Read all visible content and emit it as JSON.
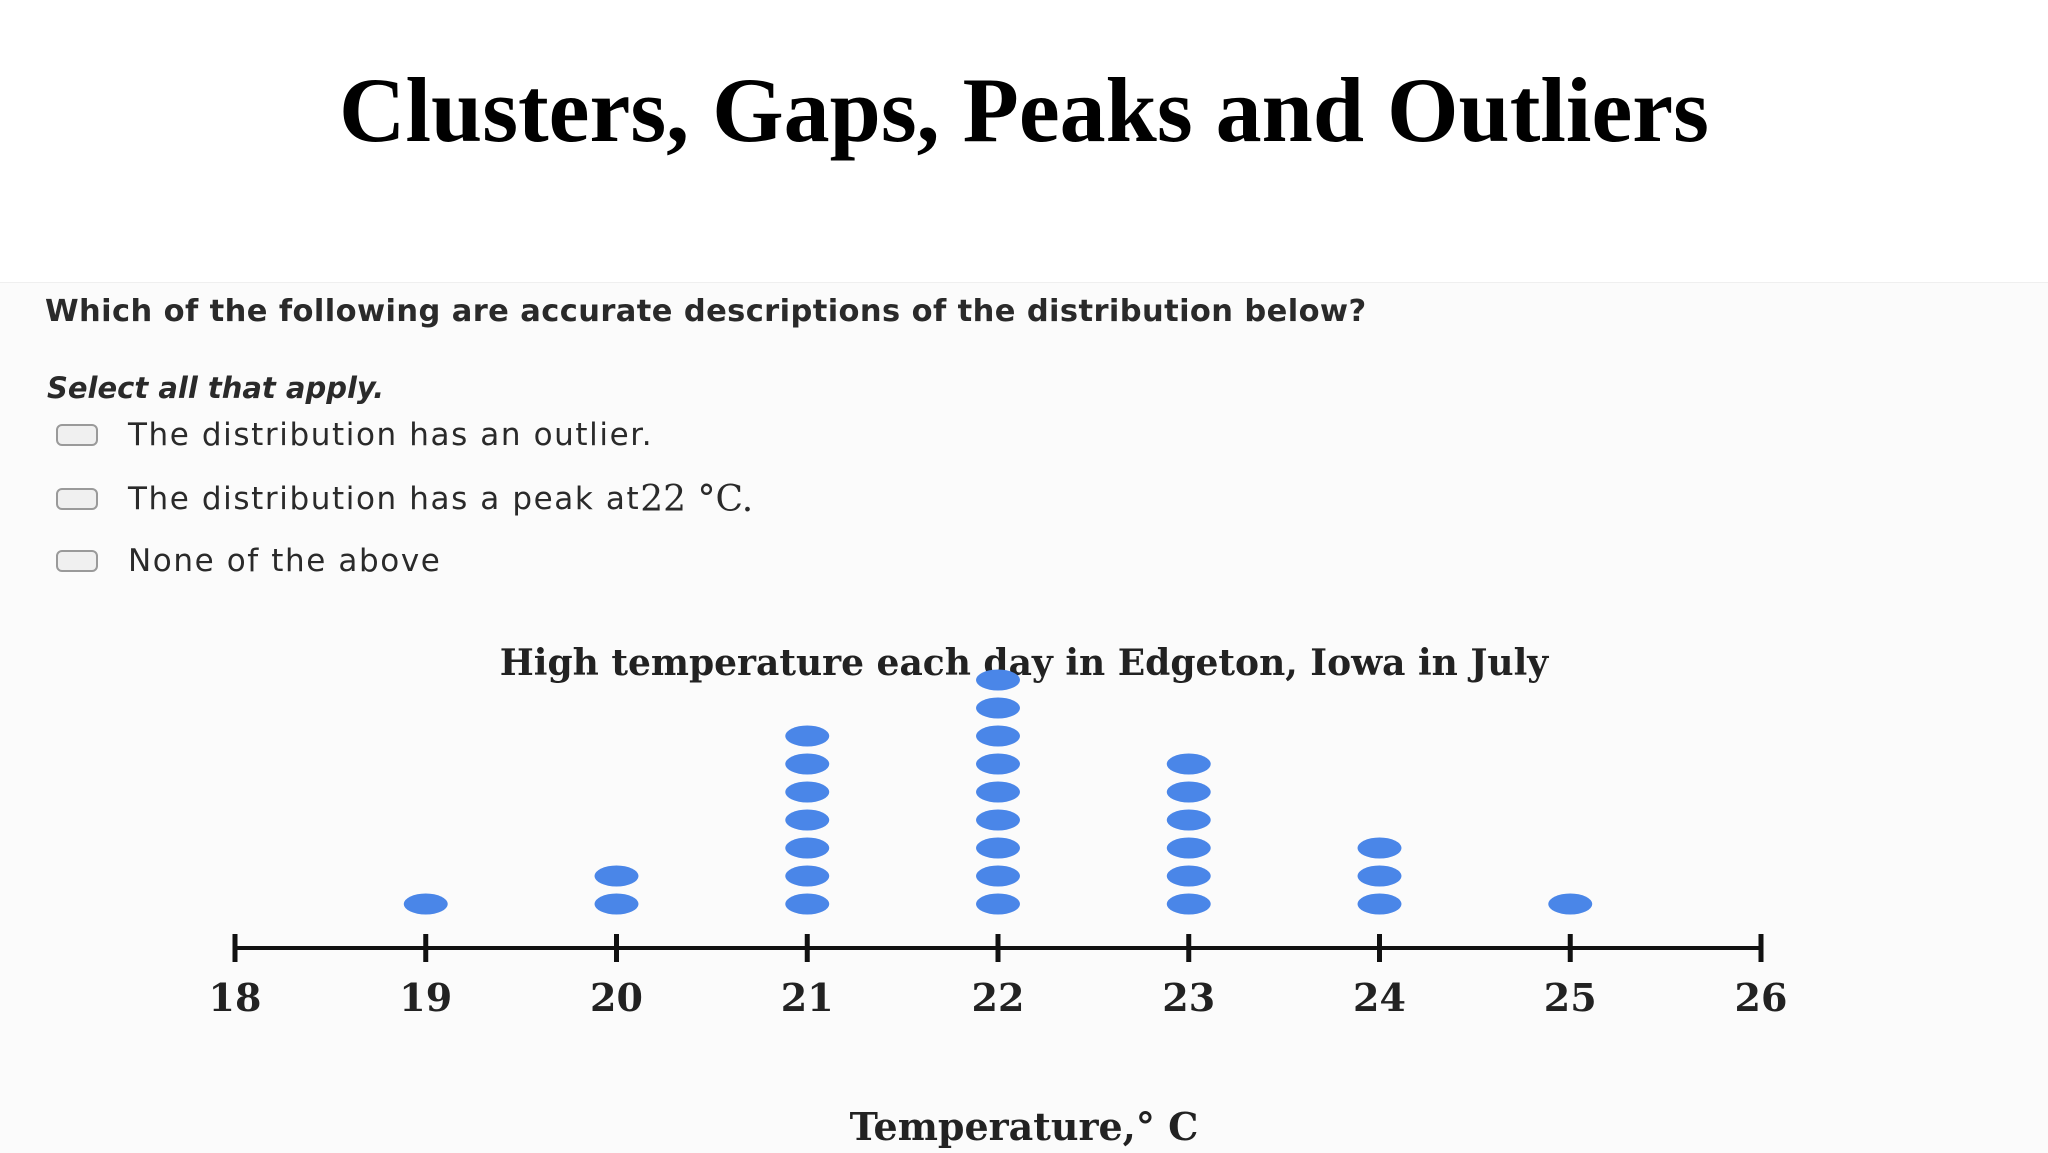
{
  "slide": {
    "title": "Clusters, Gaps, Peaks and Outliers"
  },
  "question": {
    "prompt": "Which of the following are accurate descriptions of the distribution below?",
    "instruction": "Select all that apply.",
    "options": [
      {
        "label": "The distribution has an outlier.",
        "math": "",
        "checked": false
      },
      {
        "label": "The distribution has a peak at ",
        "math": "22 °C.",
        "checked": false
      },
      {
        "label": "None of the above",
        "math": "",
        "checked": false
      }
    ]
  },
  "chart_data": {
    "type": "dot",
    "title": "High temperature each day in Edgeton, Iowa in July",
    "xlabel": "Temperature,° C",
    "ylabel": "",
    "xlim": [
      18,
      26
    ],
    "ticks": [
      18,
      19,
      20,
      21,
      22,
      23,
      24,
      25,
      26
    ],
    "x": [
      19,
      20,
      21,
      22,
      23,
      24,
      25
    ],
    "counts": [
      1,
      2,
      7,
      9,
      6,
      3,
      1
    ],
    "dot_color": "#4a86e8",
    "axis_color": "#111111",
    "grid": false
  }
}
